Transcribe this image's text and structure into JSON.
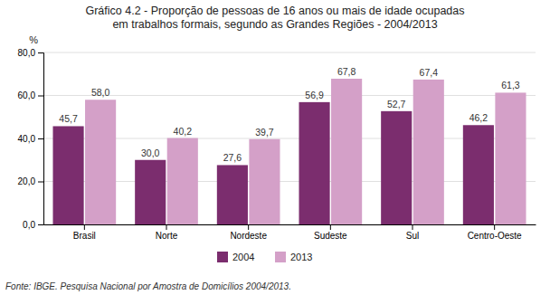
{
  "chart_data": {
    "type": "bar",
    "title": "Gráfico 4.2 - Proporção de pessoas de 16 anos ou mais de idade ocupadas\nem trabalhos formais, segundo as Grandes Regiões - 2004/2013",
    "categories": [
      "Brasil",
      "Norte",
      "Nordeste",
      "Sudeste",
      "Sul",
      "Centro-Oeste"
    ],
    "series": [
      {
        "name": "2004",
        "color": "#7B2D6E",
        "values": [
          45.7,
          30.0,
          27.6,
          56.9,
          52.7,
          46.2
        ],
        "value_labels": [
          "45,7",
          "30,0",
          "27,6",
          "56,9",
          "52,7",
          "46,2"
        ]
      },
      {
        "name": "2013",
        "color": "#D4A0C8",
        "values": [
          58.0,
          40.2,
          39.7,
          67.8,
          67.4,
          61.3
        ],
        "value_labels": [
          "58,0",
          "40,2",
          "39,7",
          "67,8",
          "67,4",
          "61,3"
        ]
      }
    ],
    "ylabel": "%",
    "ylim": [
      0,
      80
    ],
    "yticks": [
      {
        "value": 0,
        "label": "0,0"
      },
      {
        "value": 20,
        "label": "20,0"
      },
      {
        "value": 40,
        "label": "40,0"
      },
      {
        "value": 60,
        "label": "60,0"
      },
      {
        "value": 80,
        "label": "80,0"
      }
    ],
    "grid": true,
    "data_labels": true,
    "legend": "bottom",
    "footnote": "Fonte: IBGE. Pesquisa Nacional por Amostra de Domicílios 2004/2013."
  }
}
